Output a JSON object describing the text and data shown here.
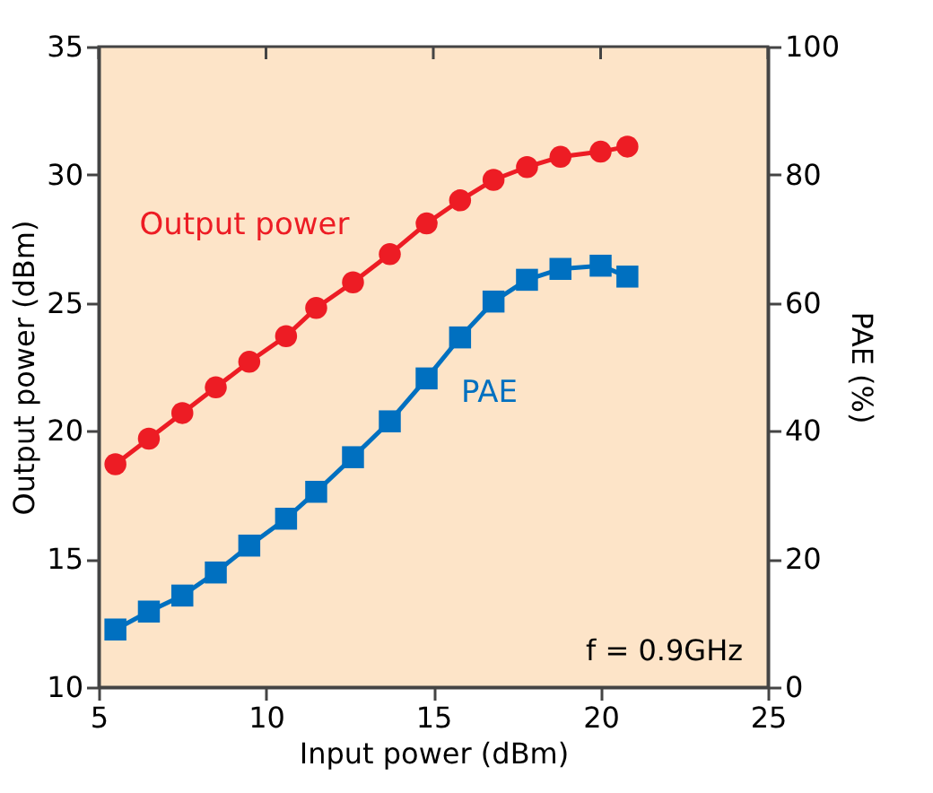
{
  "chart_data": {
    "type": "line",
    "xlabel": "Input power (dBm)",
    "ylabel": "Output power (dBm)",
    "y2label": "PAE (%)",
    "x": [
      5.5,
      6.5,
      7.5,
      8.5,
      9.5,
      10.6,
      11.5,
      12.6,
      13.7,
      14.8,
      15.8,
      16.8,
      17.8,
      18.8,
      20.0,
      20.8
    ],
    "series": [
      {
        "name": "Output power",
        "color": "#ed1c24",
        "marker": "circle",
        "axis": "y",
        "values": [
          18.7,
          19.7,
          20.7,
          21.7,
          22.7,
          23.7,
          24.8,
          25.8,
          26.9,
          28.1,
          29.0,
          29.8,
          30.3,
          30.7,
          30.9,
          31.1
        ]
      },
      {
        "name": "PAE",
        "color": "#0070c0",
        "marker": "square",
        "axis": "y2",
        "values": [
          9.0,
          11.8,
          14.3,
          17.9,
          22.1,
          26.3,
          30.5,
          35.9,
          41.5,
          48.2,
          54.6,
          60.2,
          63.6,
          65.3,
          65.8,
          64.1
        ]
      }
    ],
    "xlim": [
      5,
      25
    ],
    "xticks": [
      5,
      10,
      15,
      20,
      25
    ],
    "ylim": [
      10,
      35
    ],
    "yticks": [
      10,
      15,
      20,
      25,
      30,
      35
    ],
    "y2lim": [
      0,
      100
    ],
    "y2ticks": [
      0,
      20,
      40,
      60,
      80,
      100
    ],
    "annotations": [
      "f = 0.9GHz"
    ],
    "grid": false,
    "line_style": "solid"
  }
}
